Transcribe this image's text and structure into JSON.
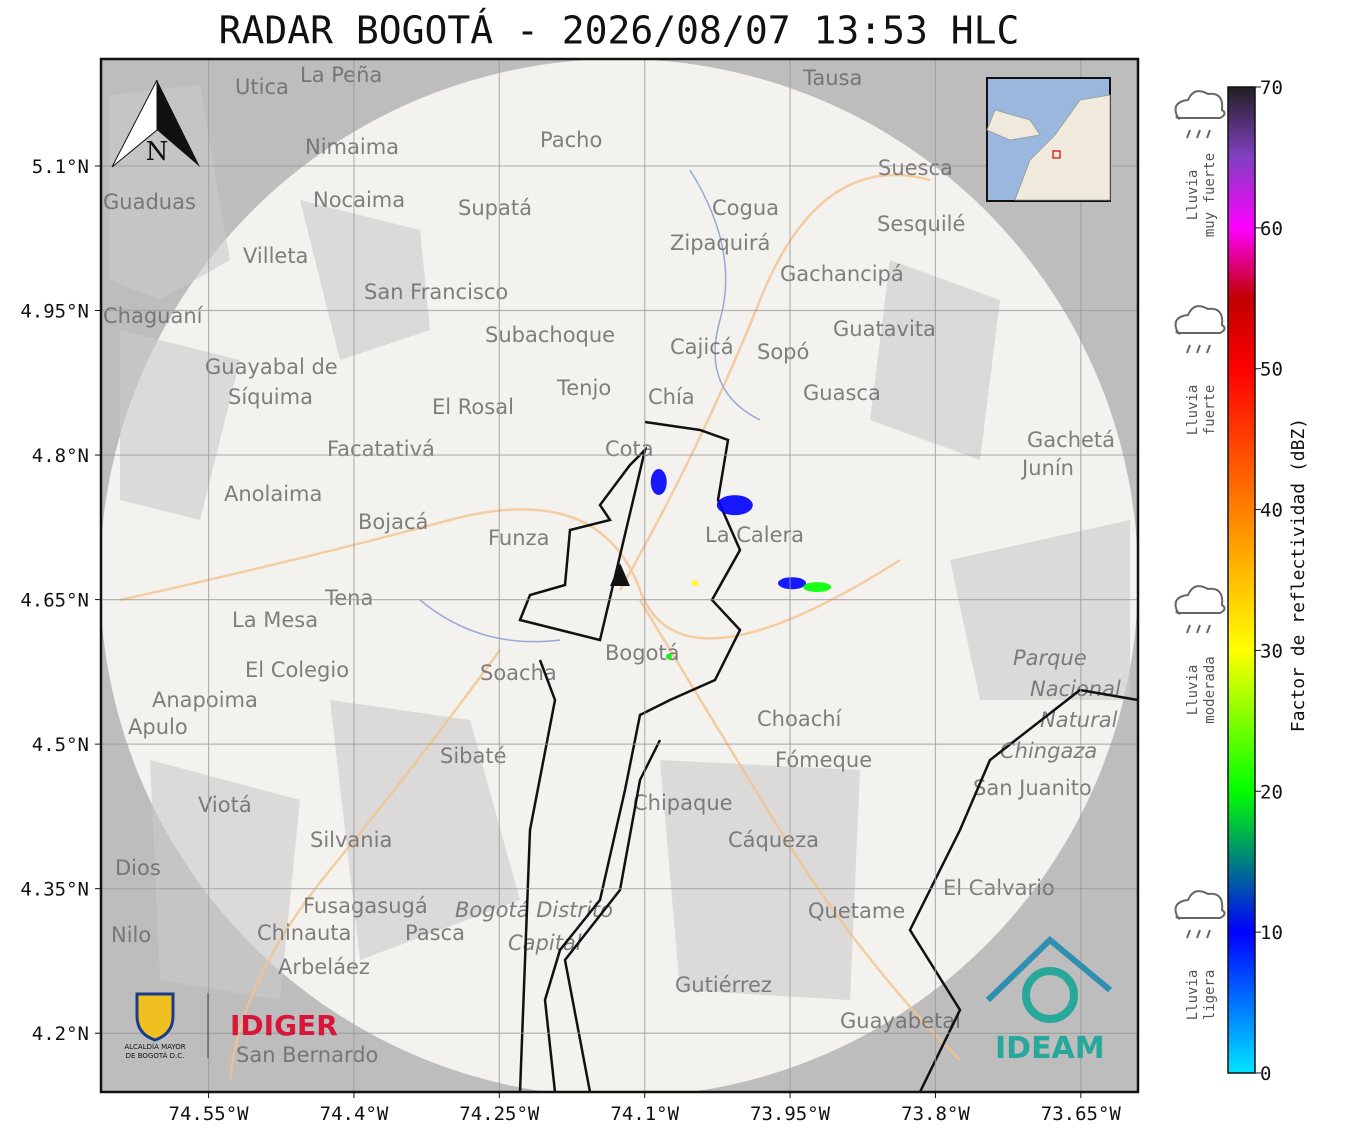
{
  "title": "RADAR BOGOTÁ - 2026/08/07 13:53 HLC",
  "map": {
    "xlim": [
      -74.661,
      -73.591
    ],
    "ylim": [
      4.139,
      5.211
    ],
    "xticks": [
      {
        "value": -74.55,
        "label": "74.55°W"
      },
      {
        "value": -74.4,
        "label": "74.4°W"
      },
      {
        "value": -74.25,
        "label": "74.25°W"
      },
      {
        "value": -74.1,
        "label": "74.1°W"
      },
      {
        "value": -73.95,
        "label": "73.95°W"
      },
      {
        "value": -73.8,
        "label": "73.8°W"
      },
      {
        "value": -73.65,
        "label": "73.65°W"
      }
    ],
    "yticks": [
      {
        "value": 5.1,
        "label": "5.1°N"
      },
      {
        "value": 4.95,
        "label": "4.95°N"
      },
      {
        "value": 4.8,
        "label": "4.8°N"
      },
      {
        "value": 4.65,
        "label": "4.65°N"
      },
      {
        "value": 4.5,
        "label": "4.5°N"
      },
      {
        "value": 4.35,
        "label": "4.35°N"
      },
      {
        "value": 4.2,
        "label": "4.2°N"
      }
    ],
    "north": "N",
    "places": [
      "La Peña",
      "Utica",
      "Tausa",
      "Pacho",
      "Nimaima",
      "Nocaima",
      "Supatá",
      "Guaduas",
      "Suesca",
      "Cogua",
      "Sesquilé",
      "Zipaquirá",
      "Villeta",
      "Gachancipá",
      "San Francisco",
      "Chaguaní",
      "Guatavita",
      "Subachoque",
      "Cajicá",
      "Sopó",
      "Guayabal de",
      "Síquima",
      "Tenjo",
      "Guasca",
      "El Rosal",
      "Chía",
      "Facatativá",
      "Cota",
      "Gachetá",
      "Junín",
      "Anolaima",
      "Bojacá",
      "La Calera",
      "Funza",
      "Tena",
      "La Mesa",
      "Bogotá",
      "Parque",
      "Nacional",
      "Natural",
      "Chingaza",
      "Soacha",
      "El Colegio",
      "Anapoima",
      "Apulo",
      "Choachí",
      "Sibaté",
      "Fómeque",
      "San Juanito",
      "Chipaque",
      "Viotá",
      "Silvania",
      "Cáqueza",
      "Dios",
      "El Calvario",
      "Fusagasugá",
      "Bogotá Distrito",
      "Capital",
      "Quetame",
      "Nilo",
      "Chinauta",
      "Pasca",
      "Arbeláez",
      "Gutiérrez",
      "Guayabetal",
      "San Bernardo"
    ],
    "echoes": [
      {
        "lon": -74.0855,
        "lat": 4.772,
        "dbz": 10
      },
      {
        "lon": -74.007,
        "lat": 4.748,
        "dbz": 15
      },
      {
        "lon": -73.948,
        "lat": 4.667,
        "dbz": 12
      },
      {
        "lon": -73.922,
        "lat": 4.663,
        "dbz": 20
      },
      {
        "lon": -74.048,
        "lat": 4.667,
        "dbz": 35
      },
      {
        "lon": -74.075,
        "lat": 4.591,
        "dbz": 20
      }
    ]
  },
  "colorbar": {
    "label": "Factor de reflectividad (dBZ)",
    "ylim": [
      0,
      70
    ],
    "yticks": [
      0,
      10,
      20,
      30,
      40,
      50,
      60,
      70
    ]
  },
  "legend": [
    [
      "Lluvia",
      "muy fuerte"
    ],
    [
      "Lluvia",
      "fuerte"
    ],
    [
      "Lluvia",
      "moderada"
    ],
    [
      "Lluvia",
      "ligera"
    ]
  ],
  "logos": {
    "alcaldia": "ALCALDÍA MAYOR",
    "alcaldia2": "DE BOGOTÁ D.C.",
    "idiger": "IDIGER",
    "ideam": "IDEAM"
  }
}
